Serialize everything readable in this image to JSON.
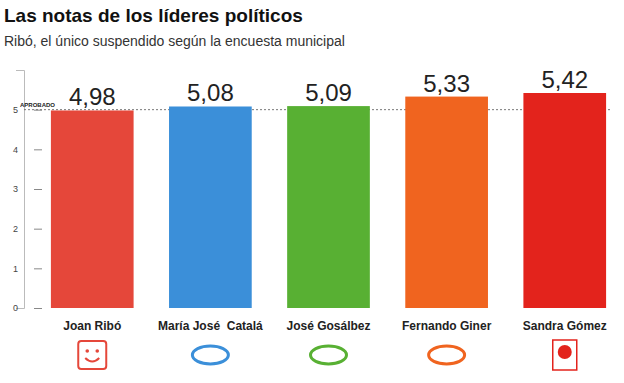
{
  "chart_data": {
    "type": "bar",
    "title": "Las notas de los líderes políticos",
    "subtitle": "Ribó, el único suspendido según la encuesta municipal",
    "categories": [
      "Joan Ribó",
      "María José  Catalá",
      "José Gosálbez",
      "Fernando Giner",
      "Sandra Gómez"
    ],
    "values": [
      4.98,
      5.08,
      5.09,
      5.33,
      5.42
    ],
    "value_labels": [
      "4,98",
      "5,08",
      "5,09",
      "5,33",
      "5,42"
    ],
    "colors": [
      "#e5473a",
      "#3b8fd9",
      "#58b033",
      "#f0641f",
      "#e3231c"
    ],
    "ylim": [
      0,
      6
    ],
    "yticks": [
      0,
      1,
      2,
      3,
      4,
      5
    ],
    "grid": false,
    "data_labels": true,
    "annotation": {
      "text": "APROBADO",
      "value": 5
    }
  }
}
